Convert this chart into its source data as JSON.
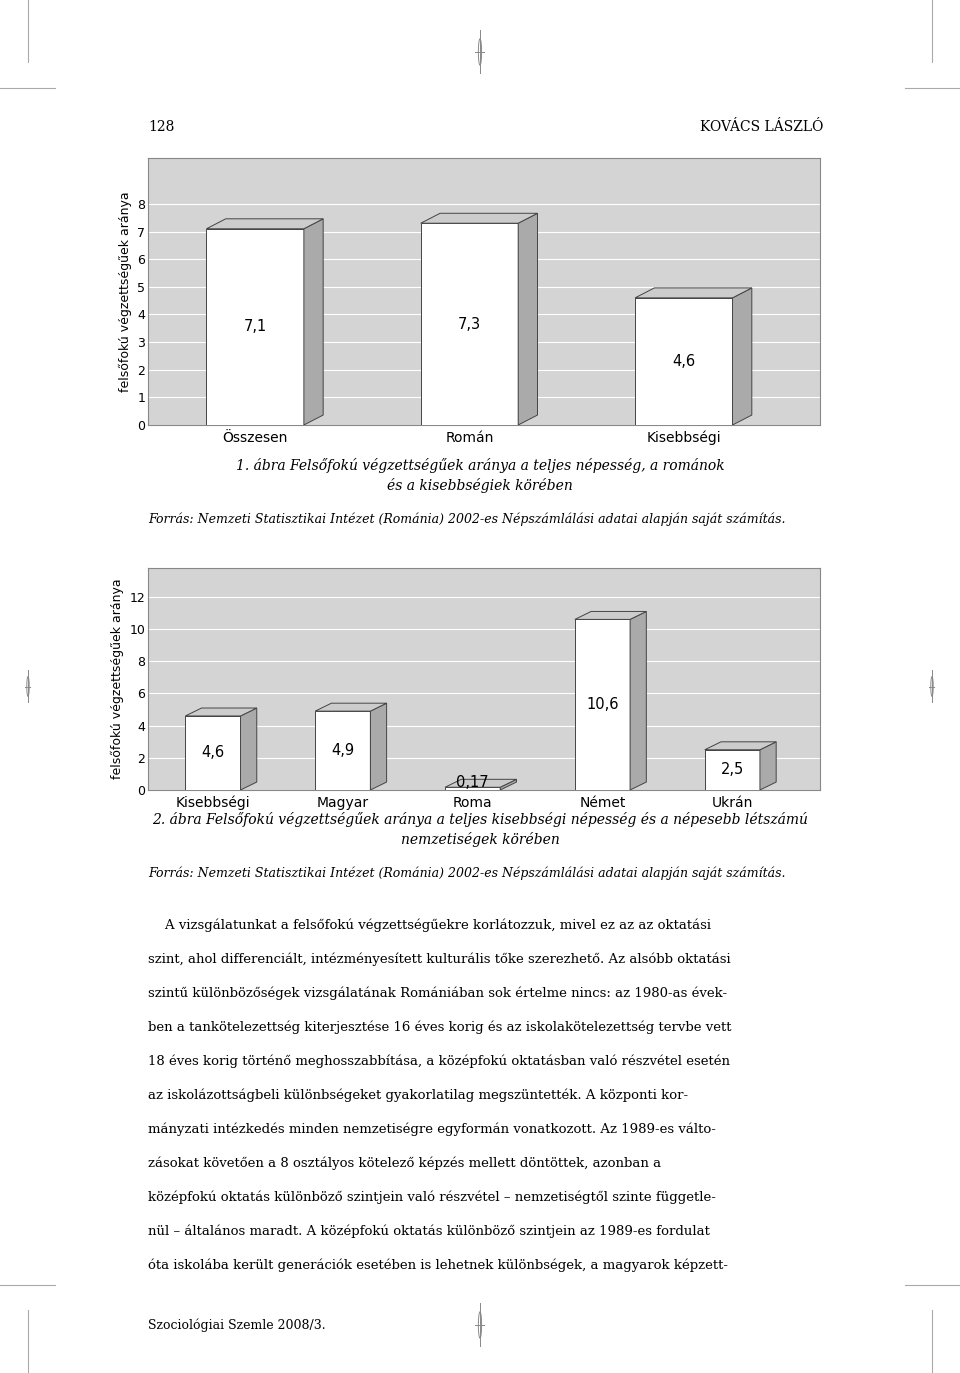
{
  "chart1": {
    "categories": [
      "Összesen",
      "Román",
      "Kisebbségi"
    ],
    "values": [
      7.1,
      7.3,
      4.6
    ],
    "labels": [
      "7,1",
      "7,3",
      "4,6"
    ],
    "ylim": [
      0,
      9
    ],
    "yticks": [
      0,
      1,
      2,
      3,
      4,
      5,
      6,
      7,
      8
    ],
    "ylabel": "felsőfokú végzettségűek aránya"
  },
  "chart2": {
    "categories": [
      "Kisebbségi",
      "Magyar",
      "Roma",
      "Német",
      "Ukrán"
    ],
    "values": [
      4.6,
      4.9,
      0.17,
      10.6,
      2.5
    ],
    "labels": [
      "4,6",
      "4,9",
      "0,17",
      "10,6",
      "2,5"
    ],
    "ylim": [
      0,
      13
    ],
    "yticks": [
      0,
      2,
      4,
      6,
      8,
      10,
      12
    ],
    "ylabel": "felsőfokú végzettségűek aránya"
  },
  "caption1_line1": "1. ábra Felsőfokú végzettségűek aránya a teljes népesség, a románok",
  "caption1_line2": "és a kisebbségiek körében",
  "caption1_source": "Forrás: Nemzeti Statisztikai Intézet (Románia) 2002-es Népszámlálási adatai alapján saját számítás.",
  "caption2_line1": "2. ábra Felsőfokú végzettségűek aránya a teljes kisebbségi népesség és a népesebb létszámú",
  "caption2_line2": "nemzetiségek körében",
  "caption2_source": "Forrás: Nemzeti Statisztikai Intézet (Románia) 2002-es Népszámlálási adatai alapján saját számítás.",
  "body_lines": [
    "    A vizsgálatunkat a felsőfokú végzettségűekre korlátozzuk, mivel ez az az oktatási",
    "szint, ahol differenciált, intézményesített kulturális tőke szerezhető. Az alsóbb oktatási",
    "szintű különbözőségek vizsgálatának Romániában sok értelme nincs: az 1980-as évek-",
    "ben a tankötelezettség kiterjesztése 16 éves korig és az iskolakötelezettség tervbe vett",
    "18 éves korig történő meghosszabbítása, a középfokú oktatásban való részvétel esetén",
    "az iskolázottságbeli különbségeket gyakorlatilag megszüntették. A központi kor-",
    "mányzati intézkedés minden nemzetiségre egyformán vonatkozott. Az 1989-es válto-",
    "zásokat követően a 8 osztályos kötelező képzés mellett döntöttek, azonban a",
    "középfokú oktatás különböző szintjein való részvétel – nemzetiségtől szinte függetle-",
    "nül – általános maradt. A középfokú oktatás különböző szintjein az 1989-es fordulat",
    "óta iskolába került generációk esetében is lehetnek különbségek, a magyarok képzett-"
  ],
  "footer_text": "Szociológiai Szemle 2008/3.",
  "page_number": "128",
  "page_header_right": "KOVÁCS LÁSZLÓ",
  "bar_face_color": "#ffffff",
  "bar_side_color": "#aaaaaa",
  "bar_top_color": "#cccccc",
  "plot_bg_color": "#d4d4d4",
  "grid_color": "#ffffff"
}
